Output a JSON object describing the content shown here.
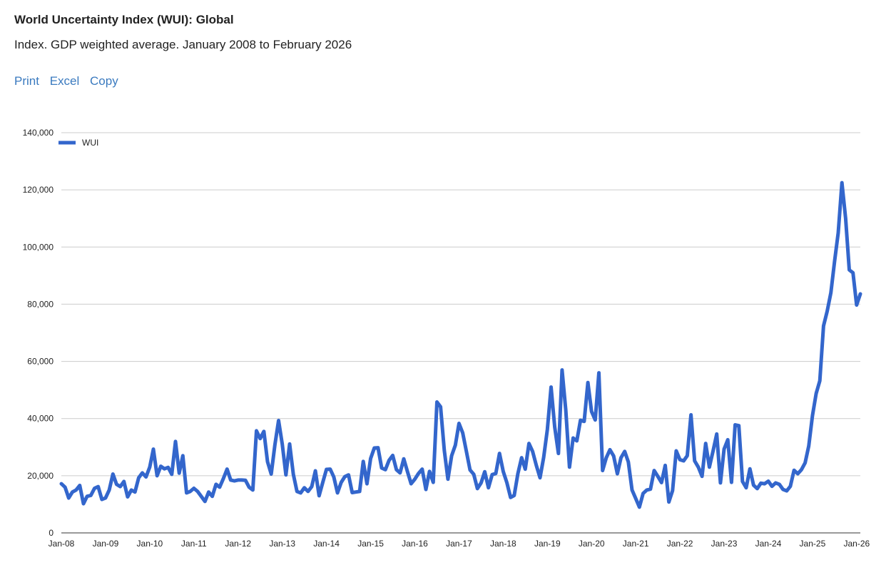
{
  "header": {
    "title": "World Uncertainty Index (WUI): Global",
    "subtitle": "Index. GDP weighted average. January 2008 to February 2026"
  },
  "toolbar": {
    "print_label": "Print",
    "excel_label": "Excel",
    "copy_label": "Copy"
  },
  "colors": {
    "series": "#3366cc",
    "link": "#3a7abf",
    "grid": "#cccccc"
  },
  "chart_data": {
    "type": "line",
    "title": "",
    "xlabel": "",
    "ylabel": "",
    "ylim": [
      0,
      140000
    ],
    "yticks": [
      0,
      20000,
      40000,
      60000,
      80000,
      100000,
      120000,
      140000
    ],
    "ytick_labels": [
      "0",
      "20,000",
      "40,000",
      "60,000",
      "80,000",
      "100,000",
      "120,000",
      "140,000"
    ],
    "xticks": [
      "Jan-08",
      "Jan-09",
      "Jan-10",
      "Jan-11",
      "Jan-12",
      "Jan-13",
      "Jan-14",
      "Jan-15",
      "Jan-16",
      "Jan-17",
      "Jan-18",
      "Jan-19",
      "Jan-20",
      "Jan-21",
      "Jan-22",
      "Jan-23",
      "Jan-24",
      "Jan-25",
      "Jan-26"
    ],
    "grid": true,
    "legend": "top-left",
    "x_start": "2008-01",
    "x_end": "2026-02",
    "series": [
      {
        "name": "WUI",
        "values": [
          17200,
          16000,
          12200,
          14300,
          15000,
          16600,
          10200,
          12800,
          13100,
          15600,
          16200,
          11700,
          12200,
          15000,
          20600,
          17000,
          16200,
          18000,
          12600,
          15000,
          14300,
          19300,
          21000,
          19600,
          23000,
          29300,
          20000,
          23300,
          22400,
          22900,
          20500,
          32000,
          20900,
          27000,
          14000,
          14500,
          15600,
          14500,
          12800,
          11000,
          14300,
          12800,
          17000,
          16000,
          19000,
          22300,
          18500,
          18200,
          18500,
          18500,
          18400,
          16000,
          15000,
          35700,
          33000,
          35500,
          24900,
          20600,
          30900,
          39300,
          31000,
          20300,
          31100,
          20500,
          14500,
          14000,
          15800,
          14500,
          16200,
          21700,
          13000,
          17700,
          22200,
          22300,
          19600,
          14000,
          17700,
          19700,
          20300,
          14100,
          14300,
          14500,
          25000,
          17200,
          26000,
          29700,
          29800,
          22700,
          22100,
          25400,
          27100,
          22100,
          21000,
          25900,
          21400,
          17200,
          18800,
          20800,
          22300,
          15200,
          21500,
          17700,
          45800,
          44100,
          28900,
          18800,
          27000,
          30700,
          38300,
          35000,
          28600,
          22000,
          20500,
          15500,
          17500,
          21400,
          15800,
          20400,
          20800,
          27800,
          21500,
          17600,
          12400,
          13100,
          20800,
          26300,
          22300,
          31300,
          28500,
          23600,
          19300,
          26400,
          36200,
          51000,
          37000,
          27800,
          57000,
          43000,
          23000,
          33200,
          32200,
          39400,
          39000,
          52600,
          42500,
          39500,
          56000,
          21800,
          26300,
          29100,
          26900,
          20700,
          26300,
          28500,
          24800,
          15000,
          12000,
          9000,
          13800,
          15000,
          15300,
          21800,
          19800,
          17600,
          23600,
          10800,
          14800,
          28700,
          25600,
          25200,
          27000,
          41300,
          25200,
          23000,
          19800,
          31300,
          23000,
          28600,
          34600,
          17500,
          29300,
          32600,
          17700,
          37800,
          37500,
          18000,
          15800,
          22400,
          16700,
          15500,
          17400,
          17200,
          18100,
          16300,
          17500,
          17000,
          15200,
          14700,
          16300,
          21900,
          20700,
          22100,
          24500,
          30400,
          41000,
          48800,
          53200,
          72400,
          77500,
          84000,
          95000,
          105000,
          122500,
          110000,
          92000,
          91000,
          79700,
          83600
        ]
      }
    ]
  }
}
